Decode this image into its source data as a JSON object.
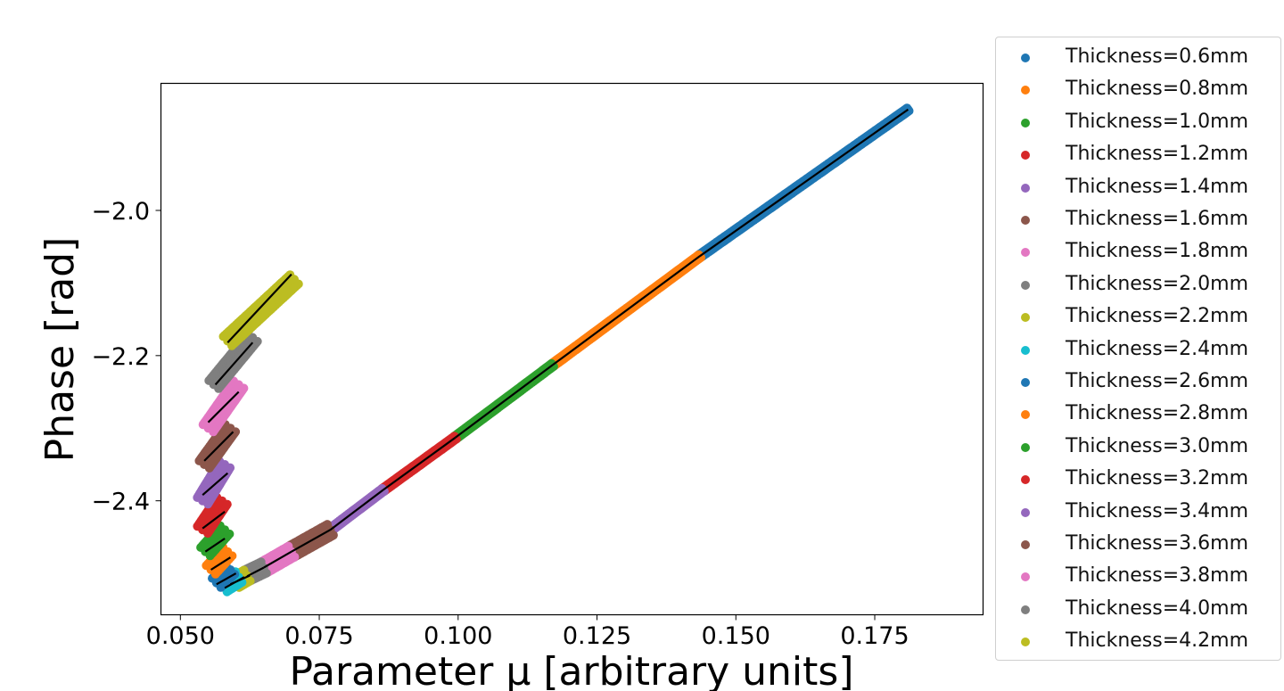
{
  "chart_data": {
    "type": "scatter",
    "xlabel": "Parameter μ [arbitrary units]",
    "ylabel": "Phase [rad]",
    "xlim": [
      0.0465,
      0.1945
    ],
    "ylim": [
      -2.557,
      -1.825
    ],
    "xticks": [
      0.05,
      0.075,
      0.1,
      0.125,
      0.15,
      0.175
    ],
    "xtick_labels": [
      "0.050",
      "0.075",
      "0.100",
      "0.125",
      "0.150",
      "0.175"
    ],
    "yticks": [
      -2.0,
      -2.2,
      -2.4
    ],
    "ytick_labels": [
      "−2.0",
      "−2.2",
      "−2.4"
    ],
    "grid": false,
    "legend_position": "outside-right",
    "series": [
      {
        "name": "Thickness=0.6mm",
        "color": "#1f77b4",
        "x": [
          0.1435,
          0.181
        ],
        "y": [
          -2.063,
          -1.861
        ],
        "fit": [
          [
            0.1435,
            -2.063
          ],
          [
            0.181,
            -1.861
          ]
        ]
      },
      {
        "name": "Thickness=0.8mm",
        "color": "#ff7f0e",
        "x": [
          0.117,
          0.1435
        ],
        "y": [
          -2.213,
          -2.063
        ],
        "fit": [
          [
            0.117,
            -2.213
          ],
          [
            0.1435,
            -2.063
          ]
        ]
      },
      {
        "name": "Thickness=1.0mm",
        "color": "#2ca02c",
        "x": [
          0.0995,
          0.117
        ],
        "y": [
          -2.313,
          -2.213
        ],
        "fit": [
          [
            0.0995,
            -2.313
          ],
          [
            0.117,
            -2.213
          ]
        ]
      },
      {
        "name": "Thickness=1.2mm",
        "color": "#d62728",
        "x": [
          0.0865,
          0.0995
        ],
        "y": [
          -2.385,
          -2.313
        ],
        "fit": [
          [
            0.0865,
            -2.385
          ],
          [
            0.0995,
            -2.313
          ]
        ]
      },
      {
        "name": "Thickness=1.4mm",
        "color": "#9467bd",
        "x": [
          0.077,
          0.0865
        ],
        "y": [
          -2.44,
          -2.385
        ],
        "fit": [
          [
            0.077,
            -2.44
          ],
          [
            0.0865,
            -2.385
          ]
        ]
      },
      {
        "name": "Thickness=1.6mm",
        "color": "#8c564b",
        "x": [
          0.07,
          0.077
        ],
        "y": [
          -2.47,
          -2.44
        ],
        "fit": [
          [
            0.07,
            -2.47
          ],
          [
            0.077,
            -2.44
          ]
        ]
      },
      {
        "name": "Thickness=1.8mm",
        "color": "#e377c2",
        "x": [
          0.065,
          0.07
        ],
        "y": [
          -2.492,
          -2.47
        ],
        "fit": [
          [
            0.065,
            -2.492
          ],
          [
            0.07,
            -2.47
          ]
        ]
      },
      {
        "name": "Thickness=2.0mm",
        "color": "#7f7f7f",
        "x": [
          0.062,
          0.065
        ],
        "y": [
          -2.503,
          -2.492
        ],
        "fit": [
          [
            0.062,
            -2.504
          ],
          [
            0.065,
            -2.492
          ]
        ]
      },
      {
        "name": "Thickness=2.2mm",
        "color": "#bcbd22",
        "x": [
          0.06,
          0.062
        ],
        "y": [
          -2.512,
          -2.503
        ],
        "fit": [
          [
            0.059,
            -2.515
          ],
          [
            0.0625,
            -2.503
          ]
        ]
      },
      {
        "name": "Thickness=2.4mm",
        "color": "#17becf",
        "x": [
          0.0578,
          0.0605
        ],
        "y": [
          -2.518,
          -2.505
        ],
        "fit": [
          [
            0.058,
            -2.52
          ],
          [
            0.0615,
            -2.505
          ]
        ]
      },
      {
        "name": "Thickness=2.6mm",
        "color": "#1f77b4",
        "x": [
          0.0565,
          0.059
        ],
        "y": [
          -2.513,
          -2.495
        ],
        "fit": [
          [
            0.0565,
            -2.515
          ],
          [
            0.06,
            -2.5
          ]
        ]
      },
      {
        "name": "Thickness=2.8mm",
        "color": "#ff7f0e",
        "x": [
          0.0555,
          0.0585
        ],
        "y": [
          -2.495,
          -2.47
        ],
        "fit": [
          [
            0.0555,
            -2.495
          ],
          [
            0.059,
            -2.478
          ]
        ]
      },
      {
        "name": "Thickness=3.0mm",
        "color": "#2ca02c",
        "x": [
          0.0545,
          0.058
        ],
        "y": [
          -2.47,
          -2.44
        ],
        "fit": [
          [
            0.0545,
            -2.47
          ],
          [
            0.058,
            -2.452
          ]
        ]
      },
      {
        "name": "Thickness=3.2mm",
        "color": "#d62728",
        "x": [
          0.054,
          0.0575
        ],
        "y": [
          -2.44,
          -2.4
        ],
        "fit": [
          [
            0.054,
            -2.438
          ],
          [
            0.058,
            -2.415
          ]
        ]
      },
      {
        "name": "Thickness=3.4mm",
        "color": "#9467bd",
        "x": [
          0.054,
          0.058
        ],
        "y": [
          -2.4,
          -2.35
        ],
        "fit": [
          [
            0.054,
            -2.392
          ],
          [
            0.0585,
            -2.362
          ]
        ]
      },
      {
        "name": "Thickness=3.6mm",
        "color": "#8c564b",
        "x": [
          0.0543,
          0.059
        ],
        "y": [
          -2.35,
          -2.3
        ],
        "fit": [
          [
            0.0543,
            -2.345
          ],
          [
            0.0595,
            -2.305
          ]
        ]
      },
      {
        "name": "Thickness=3.8mm",
        "color": "#e377c2",
        "x": [
          0.055,
          0.0605
        ],
        "y": [
          -2.3,
          -2.24
        ],
        "fit": [
          [
            0.055,
            -2.292
          ],
          [
            0.0605,
            -2.25
          ]
        ]
      },
      {
        "name": "Thickness=4.0mm",
        "color": "#7f7f7f",
        "x": [
          0.056,
          0.063
        ],
        "y": [
          -2.24,
          -2.175
        ],
        "fit": [
          [
            0.0563,
            -2.24
          ],
          [
            0.063,
            -2.182
          ]
        ]
      },
      {
        "name": "Thickness=4.2mm",
        "color": "#bcbd22",
        "x": [
          0.0585,
          0.0705
        ],
        "y": [
          -2.18,
          -2.095
        ],
        "fit": [
          [
            0.0585,
            -2.182
          ],
          [
            0.07,
            -2.088
          ]
        ]
      }
    ]
  }
}
